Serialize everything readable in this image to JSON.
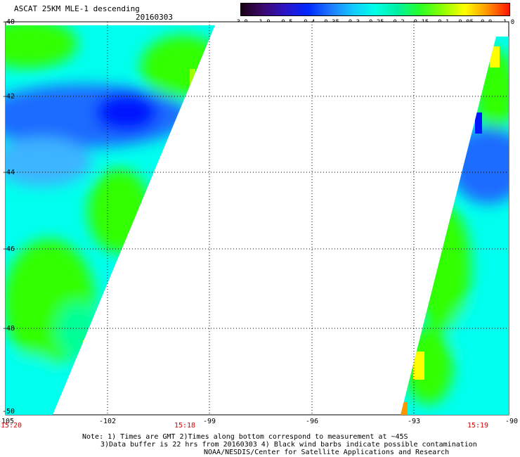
{
  "header": {
    "title": "ASCAT 25KM MLE-1 descending",
    "date": "20160303"
  },
  "colorbar": {
    "ticks": [
      "-3.0",
      "-1.0",
      "-0.5",
      "-0.4",
      "-0.35",
      "-0.3",
      "-0.25",
      "-0.2",
      "-0.15",
      "-0.1",
      "-0.05",
      "0.0",
      "1.0"
    ],
    "colors": [
      "#1a0014",
      "#3c0a6e",
      "#2a14c8",
      "#0028ff",
      "#1e78ff",
      "#14c8ff",
      "#00ffe6",
      "#00f0a0",
      "#28ff28",
      "#8cff00",
      "#ffff00",
      "#ff9600",
      "#ff1400"
    ]
  },
  "map": {
    "lon_labels": [
      "-105",
      "-102",
      "-99",
      "-96",
      "-93",
      "-90"
    ],
    "lat_labels": [
      "-40",
      "-42",
      "-44",
      "-46",
      "-48",
      "-50"
    ],
    "time_labels": [
      "15:20",
      "15:18",
      "15:19"
    ],
    "palette": {
      "deep_blue": "#0018ff",
      "blue": "#1e6cff",
      "light_blue": "#3cb4ff",
      "cyan": "#00ffee",
      "aqua_green": "#00ff96",
      "green": "#32ff00",
      "yellow_green": "#a0ff00",
      "yellow": "#ffff00",
      "orange": "#ff9600"
    }
  },
  "notes": {
    "line1": "Note: 1) Times are GMT 2)Times along bottom correspond to measurement at ~45S",
    "line2": "3)Data buffer is 22 hrs from 20160303 4) Black wind barbs indicate possible contamination",
    "line3": "NOAA/NESDIS/Center for Satellite Applications and Research"
  }
}
